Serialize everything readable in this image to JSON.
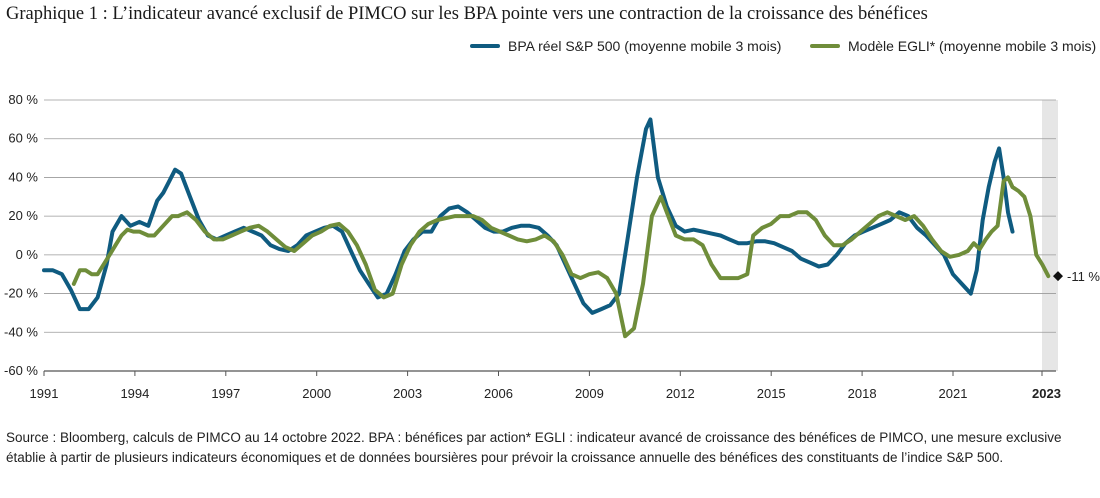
{
  "title": "Graphique 1 : L’indicateur avancé exclusif de PIMCO sur les BPA pointe vers une contraction de la croissance des bénéfices",
  "source": "Source : Bloomberg, calculs de PIMCO au 14 octobre 2022. BPA : bénéfices par action* EGLI : indicateur avancé de croissance des bénéfices de PIMCO, une mesure exclusive établie à partir de plusieurs indicateurs économiques et de données boursières pour prévoir la croissance annuelle des bénéfices des constituants de l’indice S&P 500.",
  "chart_data": {
    "type": "line",
    "title": "Graphique 1 : L’indicateur avancé exclusif de PIMCO sur les BPA pointe vers une contraction de la croissance des bénéfices",
    "xlabel": "",
    "ylabel": "",
    "xlim": [
      1991,
      2023.6
    ],
    "ylim": [
      -60,
      80
    ],
    "x_ticks": [
      1991,
      1994,
      1997,
      2000,
      2003,
      2006,
      2009,
      2012,
      2015,
      2018,
      2021,
      2023
    ],
    "x_tick_labels": [
      "1991",
      "1994",
      "1997",
      "2000",
      "2003",
      "2006",
      "2009",
      "2012",
      "2015",
      "2018",
      "2021",
      "2023"
    ],
    "y_ticks": [
      -60,
      -40,
      -20,
      0,
      20,
      40,
      60,
      80
    ],
    "y_tick_labels": [
      "-60 %",
      "-40 %",
      "-20 %",
      "0 %",
      "20 %",
      "40 %",
      "60 %",
      "80 %"
    ],
    "grid": true,
    "legend_position": "top-right",
    "forecast_shading": [
      2023,
      2023.6
    ],
    "annotation": {
      "x": 2023.5,
      "y": -11,
      "text": "-11 %"
    },
    "series": [
      {
        "name": "BPA réel S&P 500 (moyenne mobile 3 mois)",
        "color": "#0f5b80",
        "points": [
          [
            1991.0,
            -8
          ],
          [
            1991.3,
            -8
          ],
          [
            1991.6,
            -10
          ],
          [
            1991.9,
            -18
          ],
          [
            1992.2,
            -28
          ],
          [
            1992.5,
            -28
          ],
          [
            1992.8,
            -22
          ],
          [
            1993.1,
            -5
          ],
          [
            1993.3,
            12
          ],
          [
            1993.6,
            20
          ],
          [
            1993.9,
            15
          ],
          [
            1994.2,
            17
          ],
          [
            1994.5,
            15
          ],
          [
            1994.8,
            28
          ],
          [
            1995.0,
            32
          ],
          [
            1995.2,
            38
          ],
          [
            1995.4,
            44
          ],
          [
            1995.6,
            42
          ],
          [
            1995.9,
            30
          ],
          [
            1996.2,
            18
          ],
          [
            1996.5,
            10
          ],
          [
            1996.8,
            8
          ],
          [
            1997.1,
            10
          ],
          [
            1997.4,
            12
          ],
          [
            1997.7,
            14
          ],
          [
            1998.0,
            12
          ],
          [
            1998.3,
            10
          ],
          [
            1998.6,
            5
          ],
          [
            1998.9,
            3
          ],
          [
            1999.2,
            2
          ],
          [
            1999.5,
            5
          ],
          [
            1999.8,
            10
          ],
          [
            2000.1,
            12
          ],
          [
            2000.4,
            14
          ],
          [
            2000.7,
            15
          ],
          [
            2001.0,
            12
          ],
          [
            2001.3,
            2
          ],
          [
            2001.6,
            -8
          ],
          [
            2001.9,
            -15
          ],
          [
            2002.2,
            -22
          ],
          [
            2002.5,
            -20
          ],
          [
            2002.8,
            -10
          ],
          [
            2003.1,
            2
          ],
          [
            2003.4,
            8
          ],
          [
            2003.7,
            12
          ],
          [
            2004.0,
            12
          ],
          [
            2004.3,
            20
          ],
          [
            2004.6,
            24
          ],
          [
            2004.9,
            25
          ],
          [
            2005.2,
            22
          ],
          [
            2005.5,
            18
          ],
          [
            2005.8,
            14
          ],
          [
            2006.1,
            12
          ],
          [
            2006.4,
            12
          ],
          [
            2006.7,
            14
          ],
          [
            2007.0,
            15
          ],
          [
            2007.3,
            15
          ],
          [
            2007.6,
            14
          ],
          [
            2007.9,
            10
          ],
          [
            2008.2,
            5
          ],
          [
            2008.5,
            -5
          ],
          [
            2008.8,
            -15
          ],
          [
            2009.1,
            -25
          ],
          [
            2009.4,
            -30
          ],
          [
            2009.7,
            -28
          ],
          [
            2010.0,
            -26
          ],
          [
            2010.3,
            -20
          ],
          [
            2010.6,
            10
          ],
          [
            2010.9,
            40
          ],
          [
            2011.2,
            65
          ],
          [
            2011.35,
            70
          ],
          [
            2011.6,
            40
          ],
          [
            2011.9,
            25
          ],
          [
            2012.2,
            15
          ],
          [
            2012.5,
            12
          ],
          [
            2012.8,
            13
          ],
          [
            2013.1,
            12
          ],
          [
            2013.4,
            11
          ],
          [
            2013.7,
            10
          ],
          [
            2014.0,
            8
          ],
          [
            2014.3,
            6
          ],
          [
            2014.6,
            6
          ],
          [
            2014.9,
            7
          ],
          [
            2015.2,
            7
          ],
          [
            2015.5,
            6
          ],
          [
            2015.8,
            4
          ],
          [
            2016.1,
            2
          ],
          [
            2016.4,
            -2
          ],
          [
            2016.7,
            -4
          ],
          [
            2017.0,
            -6
          ],
          [
            2017.3,
            -5
          ],
          [
            2017.6,
            0
          ],
          [
            2017.9,
            6
          ],
          [
            2018.2,
            10
          ],
          [
            2018.5,
            12
          ],
          [
            2018.8,
            14
          ],
          [
            2019.1,
            16
          ],
          [
            2019.4,
            18
          ],
          [
            2019.7,
            22
          ],
          [
            2020.0,
            20
          ],
          [
            2020.3,
            14
          ],
          [
            2020.6,
            10
          ],
          [
            2020.9,
            5
          ],
          [
            2021.2,
            0
          ],
          [
            2021.5,
            -10
          ],
          [
            2021.8,
            -15
          ],
          [
            2022.1,
            -20
          ],
          [
            2022.3,
            -8
          ],
          [
            2022.5,
            18
          ],
          [
            2022.7,
            35
          ],
          [
            2022.9,
            48
          ],
          [
            2023.05,
            55
          ],
          [
            2023.2,
            40
          ],
          [
            2023.35,
            22
          ],
          [
            2023.5,
            12
          ]
        ]
      },
      {
        "name": "Modèle EGLI* (moyenne mobile 3 mois)",
        "color": "#6f8d3a",
        "points": [
          [
            1992.0,
            -15
          ],
          [
            1992.2,
            -8
          ],
          [
            1992.4,
            -8
          ],
          [
            1992.6,
            -10
          ],
          [
            1992.8,
            -10
          ],
          [
            1993.0,
            -5
          ],
          [
            1993.2,
            0
          ],
          [
            1993.4,
            5
          ],
          [
            1993.6,
            10
          ],
          [
            1993.8,
            13
          ],
          [
            1994.0,
            12
          ],
          [
            1994.2,
            12
          ],
          [
            1994.5,
            10
          ],
          [
            1994.7,
            10
          ],
          [
            1995.0,
            15
          ],
          [
            1995.3,
            20
          ],
          [
            1995.5,
            20
          ],
          [
            1995.8,
            22
          ],
          [
            1996.1,
            18
          ],
          [
            1996.4,
            12
          ],
          [
            1996.7,
            8
          ],
          [
            1997.0,
            8
          ],
          [
            1997.3,
            10
          ],
          [
            1997.6,
            12
          ],
          [
            1997.9,
            14
          ],
          [
            1998.2,
            15
          ],
          [
            1998.5,
            12
          ],
          [
            1998.8,
            8
          ],
          [
            1999.1,
            4
          ],
          [
            1999.4,
            2
          ],
          [
            1999.7,
            6
          ],
          [
            2000.0,
            10
          ],
          [
            2000.3,
            12
          ],
          [
            2000.6,
            15
          ],
          [
            2000.9,
            16
          ],
          [
            2001.2,
            12
          ],
          [
            2001.5,
            5
          ],
          [
            2001.8,
            -5
          ],
          [
            2002.1,
            -18
          ],
          [
            2002.4,
            -22
          ],
          [
            2002.7,
            -20
          ],
          [
            2003.0,
            -5
          ],
          [
            2003.3,
            5
          ],
          [
            2003.6,
            12
          ],
          [
            2003.9,
            16
          ],
          [
            2004.2,
            18
          ],
          [
            2004.5,
            19
          ],
          [
            2004.8,
            20
          ],
          [
            2005.1,
            20
          ],
          [
            2005.4,
            20
          ],
          [
            2005.7,
            18
          ],
          [
            2006.0,
            14
          ],
          [
            2006.3,
            12
          ],
          [
            2006.6,
            10
          ],
          [
            2006.9,
            8
          ],
          [
            2007.2,
            7
          ],
          [
            2007.5,
            8
          ],
          [
            2007.8,
            10
          ],
          [
            2008.1,
            7
          ],
          [
            2008.4,
            0
          ],
          [
            2008.7,
            -10
          ],
          [
            2009.0,
            -12
          ],
          [
            2009.3,
            -10
          ],
          [
            2009.6,
            -9
          ],
          [
            2009.9,
            -12
          ],
          [
            2010.2,
            -20
          ],
          [
            2010.5,
            -42
          ],
          [
            2010.8,
            -38
          ],
          [
            2011.1,
            -15
          ],
          [
            2011.4,
            20
          ],
          [
            2011.7,
            30
          ],
          [
            2011.9,
            22
          ],
          [
            2012.2,
            10
          ],
          [
            2012.5,
            8
          ],
          [
            2012.8,
            8
          ],
          [
            2013.1,
            5
          ],
          [
            2013.4,
            -5
          ],
          [
            2013.7,
            -12
          ],
          [
            2014.0,
            -12
          ],
          [
            2014.3,
            -12
          ],
          [
            2014.6,
            -10
          ],
          [
            2014.8,
            10
          ],
          [
            2015.1,
            14
          ],
          [
            2015.4,
            16
          ],
          [
            2015.7,
            20
          ],
          [
            2016.0,
            20
          ],
          [
            2016.3,
            22
          ],
          [
            2016.6,
            22
          ],
          [
            2016.9,
            18
          ],
          [
            2017.2,
            10
          ],
          [
            2017.5,
            5
          ],
          [
            2017.8,
            5
          ],
          [
            2018.1,
            8
          ],
          [
            2018.4,
            12
          ],
          [
            2018.7,
            16
          ],
          [
            2019.0,
            20
          ],
          [
            2019.3,
            22
          ],
          [
            2019.6,
            20
          ],
          [
            2019.9,
            18
          ],
          [
            2020.2,
            20
          ],
          [
            2020.5,
            15
          ],
          [
            2020.8,
            8
          ],
          [
            2021.1,
            2
          ],
          [
            2021.4,
            -1
          ],
          [
            2021.7,
            0
          ],
          [
            2022.0,
            2
          ],
          [
            2022.2,
            6
          ],
          [
            2022.4,
            3
          ],
          [
            2022.6,
            8
          ],
          [
            2022.8,
            12
          ],
          [
            2023.0,
            15
          ],
          [
            2023.2,
            38
          ],
          [
            2023.35,
            40
          ],
          [
            2023.5,
            35
          ],
          [
            2023.7,
            33
          ],
          [
            2023.9,
            30
          ],
          [
            2024.1,
            20
          ],
          [
            2024.3,
            0
          ],
          [
            2024.5,
            -5
          ],
          [
            2024.7,
            -11
          ]
        ]
      }
    ]
  }
}
